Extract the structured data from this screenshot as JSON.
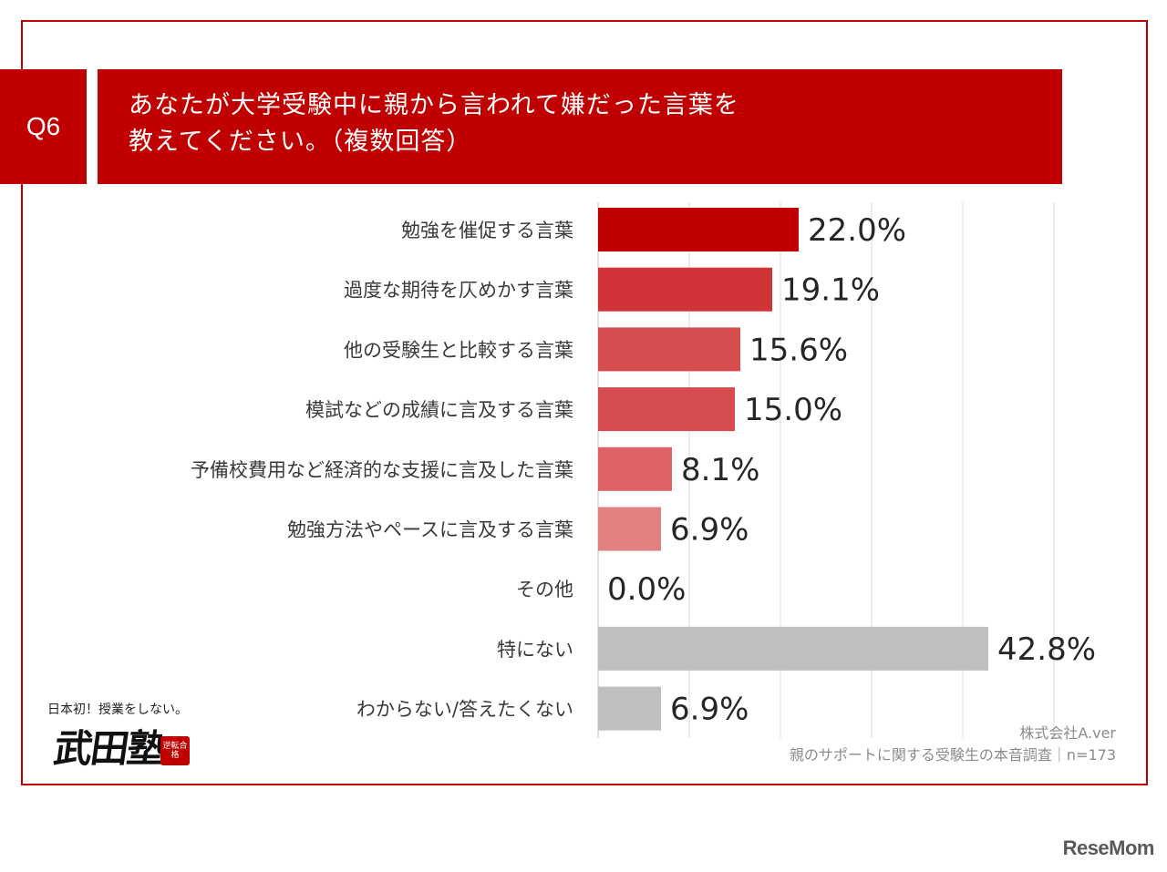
{
  "question": {
    "tag": "Q6",
    "title_line1": "あなたが大学受験中に親から言われて嫌だった言葉を",
    "title_line2": "教えてください。（複数回答）"
  },
  "chart_data": {
    "type": "bar",
    "orientation": "horizontal",
    "categories": [
      "勉強を催促する言葉",
      "過度な期待を仄めかす言葉",
      "他の受験生と比較する言葉",
      "模試などの成績に言及する言葉",
      "予備校費用など経済的な支援に言及した言葉",
      "勉強方法やペースに言及する言葉",
      "その他",
      "特にない",
      "わからない/答えたくない"
    ],
    "values": [
      22.0,
      19.1,
      15.6,
      15.0,
      8.1,
      6.9,
      0.0,
      42.8,
      6.9
    ],
    "value_labels": [
      "22.0%",
      "19.1%",
      "15.6%",
      "15.0%",
      "8.1%",
      "6.9%",
      "0.0%",
      "42.8%",
      "6.9%"
    ],
    "colors": [
      "#c00000",
      "#d13438",
      "#d64c4f",
      "#d64c4f",
      "#de6366",
      "#e28082",
      "#e28082",
      "#bfbfbf",
      "#bfbfbf"
    ],
    "xlim": [
      0,
      50
    ],
    "grid": true
  },
  "footer": {
    "company": "株式会社A.ver",
    "source": "親のサポートに関する受験生の本音調査｜n=173"
  },
  "logo": {
    "tagline": "日本初！授業をしない。",
    "mark": "武田塾",
    "stamp": "逆転合格"
  },
  "brand": "ReseMom"
}
